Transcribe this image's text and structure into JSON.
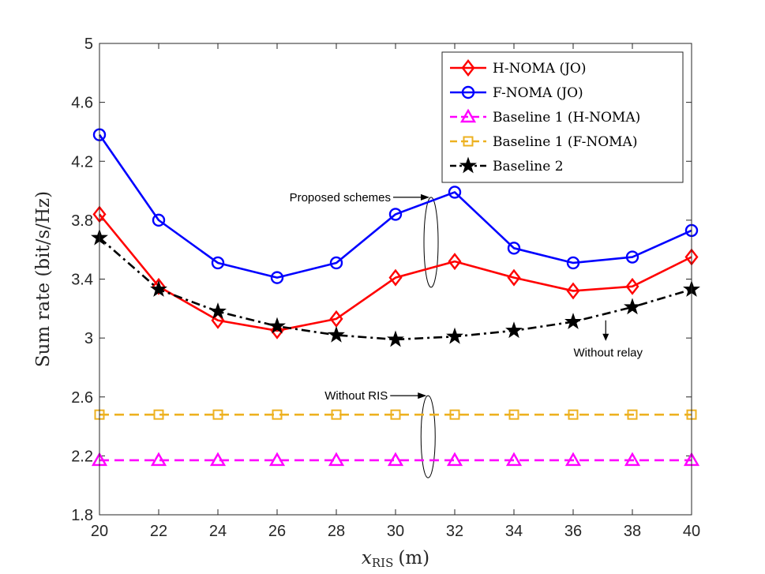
{
  "chart_data": {
    "type": "line",
    "xlabel_main": "x",
    "xlabel_sub": "RIS",
    "xlabel_unit": "(m)",
    "ylabel": "Sum rate (bit/s/Hz)",
    "xlim": [
      20,
      40
    ],
    "ylim": [
      1.8,
      5
    ],
    "xticks": [
      20,
      22,
      24,
      26,
      28,
      30,
      32,
      34,
      36,
      38,
      40
    ],
    "yticks": [
      1.8,
      2.2,
      2.6,
      3,
      3.4,
      3.8,
      4.2,
      4.6,
      5
    ],
    "ytick_labels": [
      "1.8",
      "2.2",
      "2.6",
      "3",
      "3.4",
      "3.8",
      "4.2",
      "4.6",
      "5"
    ],
    "x": [
      20,
      22,
      24,
      26,
      28,
      30,
      32,
      34,
      36,
      38,
      40
    ],
    "series": [
      {
        "name": "H-NOMA (JO)",
        "color": "#ff0000",
        "dash": "solid",
        "marker": "diamond",
        "values": [
          3.84,
          3.35,
          3.12,
          3.05,
          3.13,
          3.41,
          3.52,
          3.41,
          3.32,
          3.35,
          3.55
        ]
      },
      {
        "name": "F-NOMA (JO)",
        "color": "#0000ff",
        "dash": "solid",
        "marker": "circle",
        "values": [
          4.38,
          3.8,
          3.51,
          3.41,
          3.51,
          3.84,
          3.99,
          3.61,
          3.51,
          3.55,
          3.73
        ]
      },
      {
        "name": "Baseline 1 (H-NOMA)",
        "color": "#ff00ff",
        "dash": "dashed",
        "marker": "triangle",
        "values": [
          2.17,
          2.17,
          2.17,
          2.17,
          2.17,
          2.17,
          2.17,
          2.17,
          2.17,
          2.17,
          2.17
        ]
      },
      {
        "name": "Baseline 1 (F-NOMA)",
        "color": "#edb120",
        "dash": "dashed",
        "marker": "square",
        "values": [
          2.48,
          2.48,
          2.48,
          2.48,
          2.48,
          2.48,
          2.48,
          2.48,
          2.48,
          2.48,
          2.48
        ]
      },
      {
        "name": "Baseline 2",
        "color": "#000000",
        "dash": "dashdot",
        "marker": "star",
        "values": [
          3.68,
          3.33,
          3.18,
          3.08,
          3.02,
          2.99,
          3.01,
          3.05,
          3.11,
          3.21,
          3.33
        ]
      }
    ],
    "legend_position": "top-right",
    "annotations": [
      {
        "text": "Proposed schemes",
        "kind": "ellipse-arrow",
        "x_pos": 31.2,
        "y_pos": 3.65
      },
      {
        "text": "Without RIS",
        "kind": "ellipse-arrow",
        "x_pos": 31.1,
        "y_pos": 2.33
      },
      {
        "text": "Without relay",
        "kind": "arrow-down",
        "x_pos": 37.1,
        "y_pos": 3.12
      }
    ]
  }
}
